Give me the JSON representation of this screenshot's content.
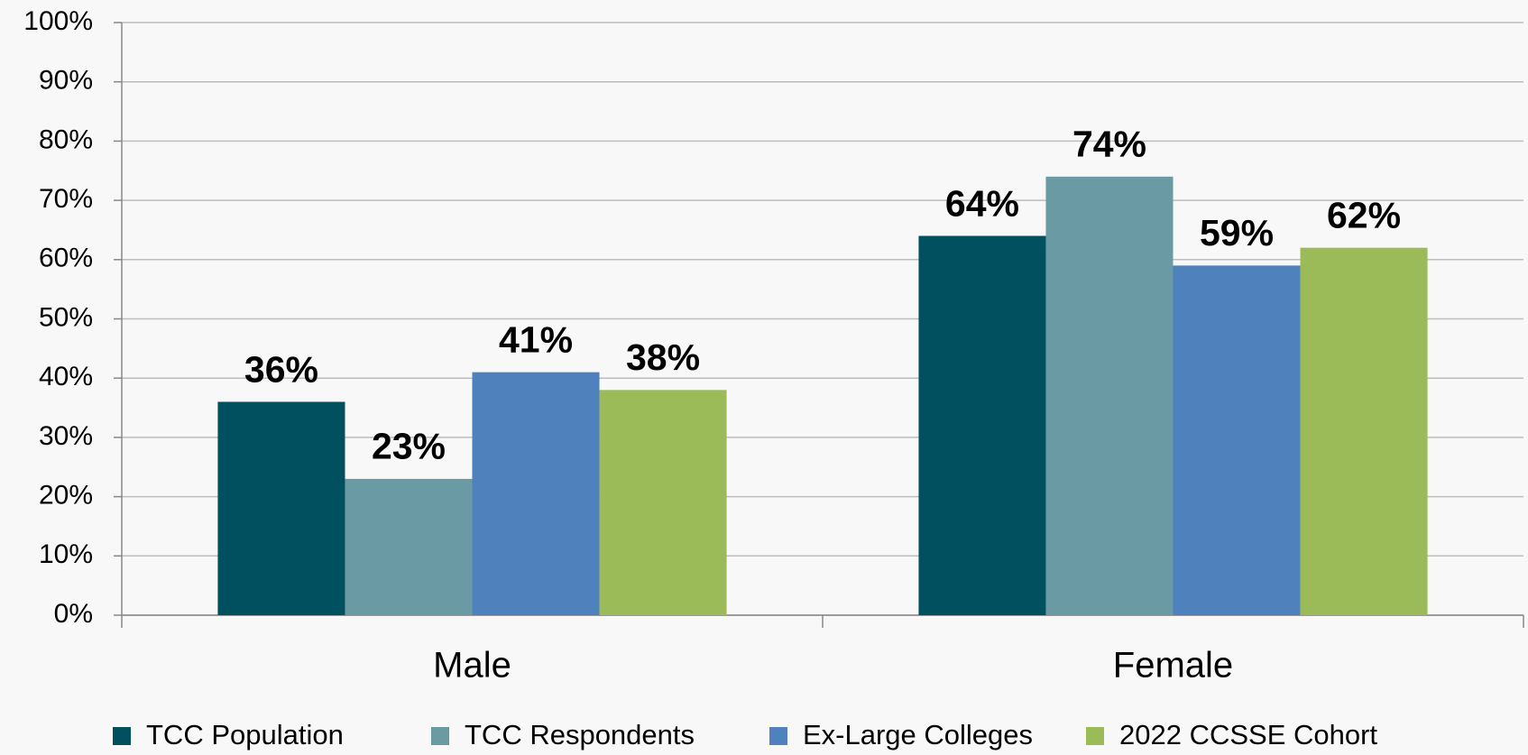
{
  "chart_data": {
    "type": "bar",
    "categories": [
      "Male",
      "Female"
    ],
    "series": [
      {
        "name": "TCC Population",
        "color": "#00505f",
        "values": [
          36,
          64
        ],
        "value_labels": [
          "36%",
          "64%"
        ]
      },
      {
        "name": "TCC Respondents",
        "color": "#6a9ba5",
        "values": [
          23,
          74
        ],
        "value_labels": [
          "23%",
          "74%"
        ]
      },
      {
        "name": "Ex-Large Colleges",
        "color": "#4f81bd",
        "values": [
          41,
          59
        ],
        "value_labels": [
          "41%",
          "59%"
        ]
      },
      {
        "name": "2022 CCSSE Cohort",
        "color": "#9bbb59",
        "values": [
          38,
          62
        ],
        "value_labels": [
          "38%",
          "62%"
        ]
      }
    ],
    "ylim": [
      0,
      100
    ],
    "yticks": [
      {
        "value": 0,
        "label": "0%"
      },
      {
        "value": 10,
        "label": "10%"
      },
      {
        "value": 20,
        "label": "20%"
      },
      {
        "value": 30,
        "label": "30%"
      },
      {
        "value": 40,
        "label": "40%"
      },
      {
        "value": 50,
        "label": "50%"
      },
      {
        "value": 60,
        "label": "60%"
      },
      {
        "value": 70,
        "label": "70%"
      },
      {
        "value": 80,
        "label": "80%"
      },
      {
        "value": 90,
        "label": "90%"
      },
      {
        "value": 100,
        "label": "100%"
      }
    ],
    "grid": true,
    "legend": "bottom"
  }
}
